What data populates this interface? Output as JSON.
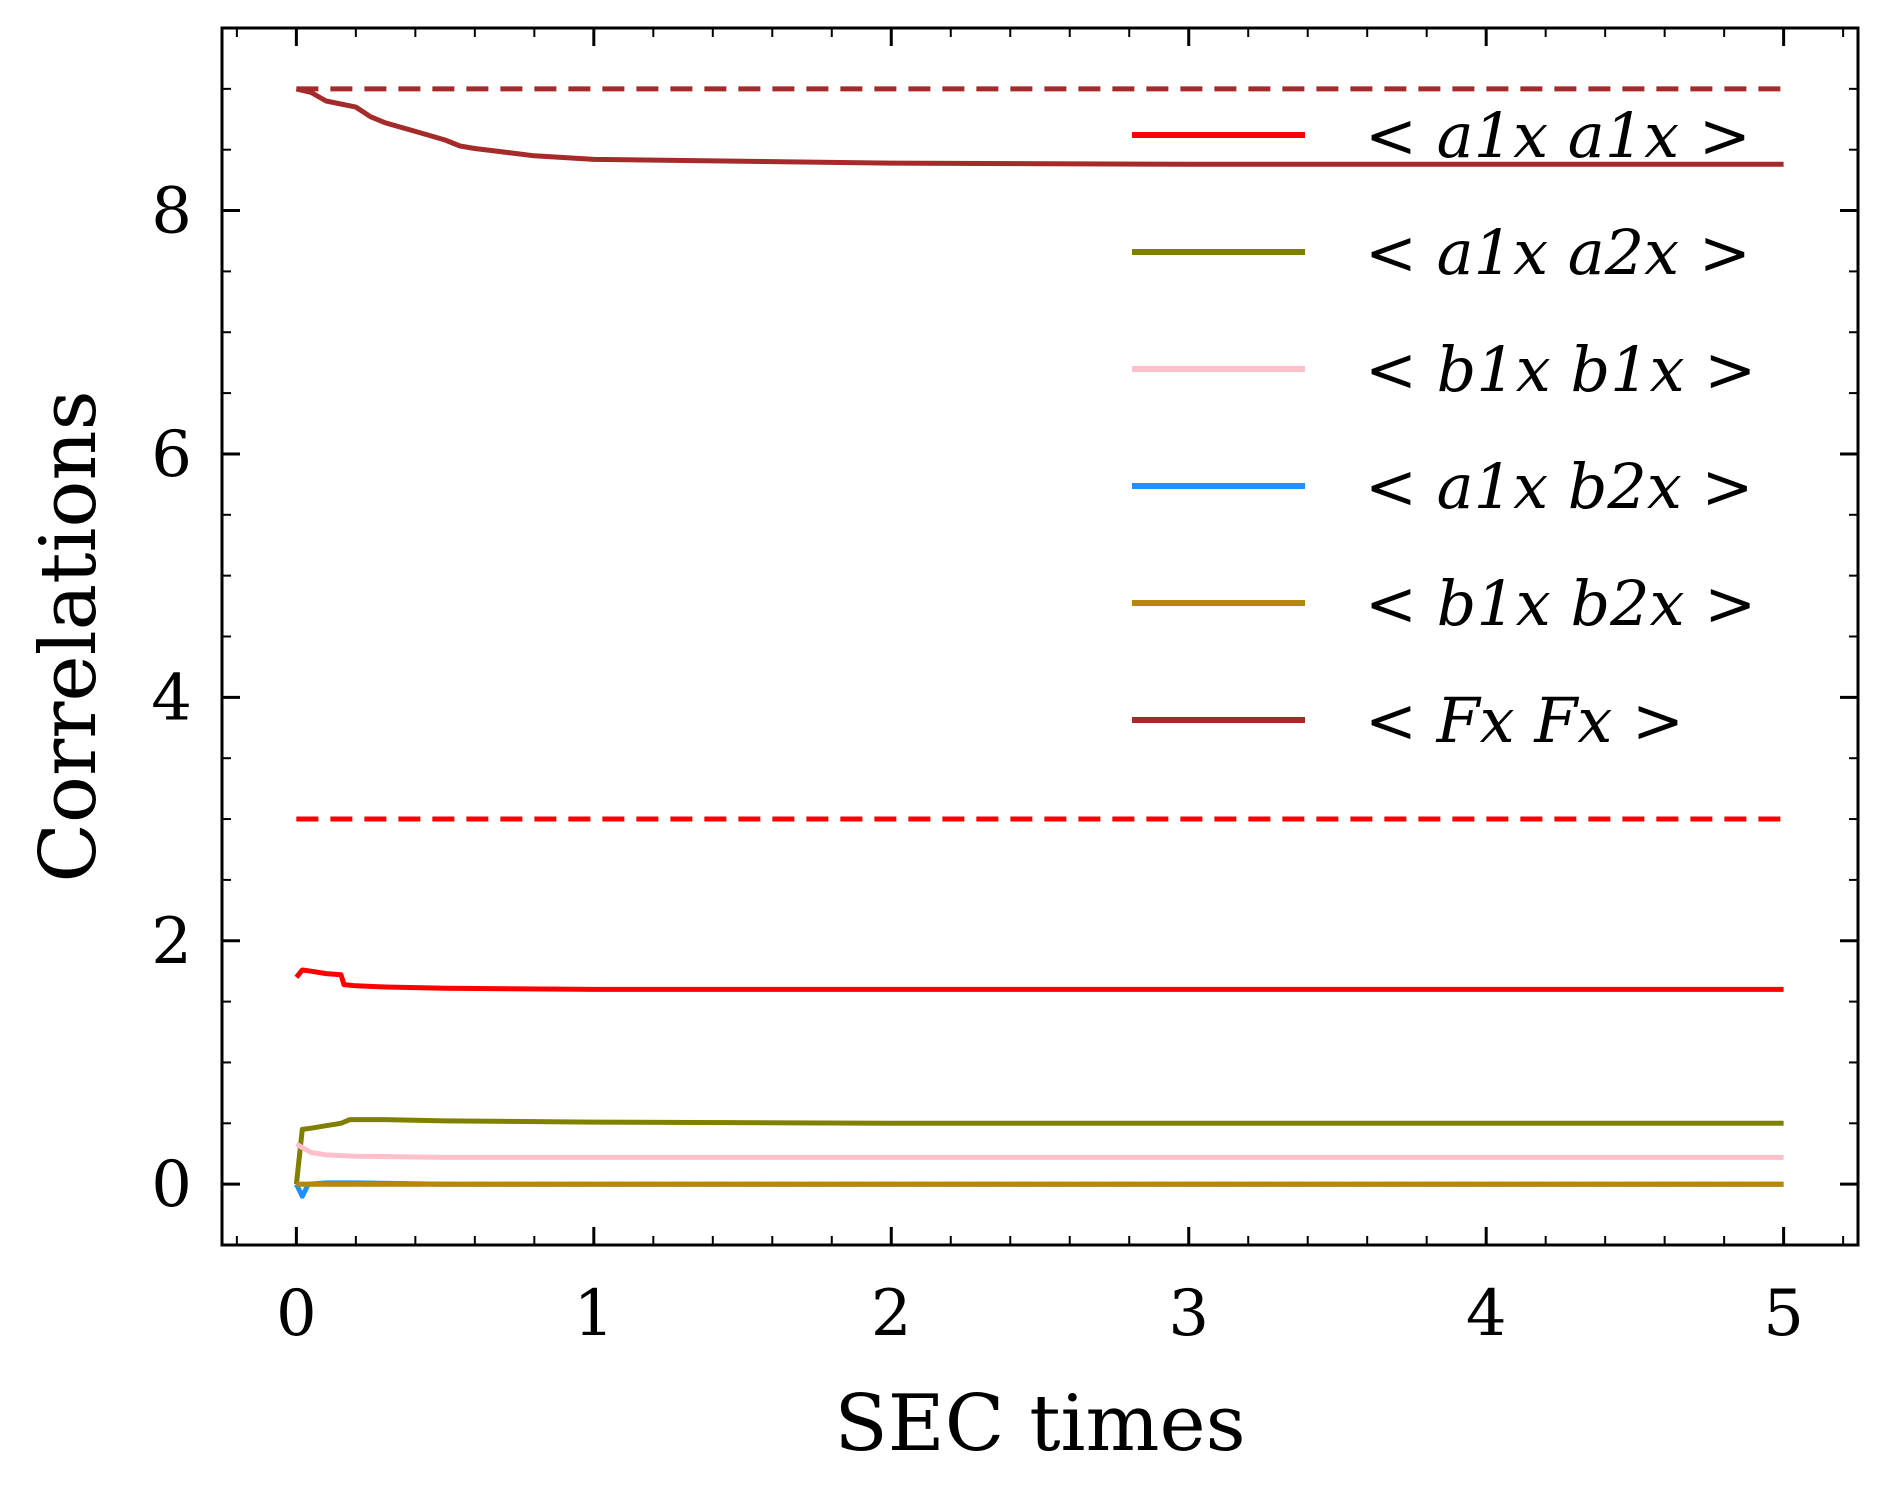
{
  "chart_data": {
    "type": "line",
    "title": "",
    "xlabel": "SEC times",
    "ylabel": "Correlations",
    "xlim": [
      -0.25,
      5.25
    ],
    "ylim": [
      -0.5,
      9.5
    ],
    "xticks": [
      "0",
      "1",
      "2",
      "3",
      "4",
      "5"
    ],
    "yticks": [
      "0",
      "2",
      "4",
      "6",
      "8"
    ],
    "grid": false,
    "legend_position": "upper-right",
    "series": [
      {
        "name": "< a1x a1x >",
        "color": "#ff0000",
        "style": "solid",
        "x": [
          0,
          0.02,
          0.05,
          0.1,
          0.15,
          0.16,
          0.2,
          0.3,
          0.5,
          1,
          2,
          3,
          4,
          5
        ],
        "y": [
          1.7,
          1.76,
          1.75,
          1.73,
          1.72,
          1.64,
          1.63,
          1.62,
          1.61,
          1.6,
          1.6,
          1.6,
          1.6,
          1.6
        ]
      },
      {
        "name": "< a1x a2x >",
        "color": "#808000",
        "style": "solid",
        "x": [
          0,
          0.02,
          0.05,
          0.1,
          0.15,
          0.18,
          0.3,
          0.5,
          1,
          2,
          3,
          4,
          5
        ],
        "y": [
          0.0,
          0.45,
          0.46,
          0.48,
          0.5,
          0.53,
          0.53,
          0.52,
          0.51,
          0.5,
          0.5,
          0.5,
          0.5
        ]
      },
      {
        "name": "< b1x b1x >",
        "color": "#ffc0cb",
        "style": "solid",
        "x": [
          0,
          0.02,
          0.05,
          0.1,
          0.2,
          0.5,
          1,
          2,
          3,
          4,
          5
        ],
        "y": [
          0.33,
          0.3,
          0.26,
          0.24,
          0.23,
          0.22,
          0.22,
          0.22,
          0.22,
          0.22,
          0.22
        ]
      },
      {
        "name": "< a1x b2x >",
        "color": "#1e90ff",
        "style": "solid",
        "x": [
          0,
          0.01,
          0.02,
          0.04,
          0.1,
          0.2,
          0.5,
          1,
          2,
          3,
          4,
          5
        ],
        "y": [
          0.0,
          -0.05,
          -0.1,
          0.0,
          0.01,
          0.01,
          0.0,
          0.0,
          0.0,
          0.0,
          0.0,
          0.0
        ]
      },
      {
        "name": "< b1x b2x >",
        "color": "#b8860b",
        "style": "solid",
        "x": [
          0,
          0.05,
          0.2,
          1,
          2,
          3,
          4,
          5
        ],
        "y": [
          0.0,
          0.0,
          0.0,
          0.0,
          0.0,
          0.0,
          0.0,
          0.0
        ]
      },
      {
        "name": "< Fx Fx >",
        "color": "#a52a2a",
        "style": "solid",
        "x": [
          0,
          0.05,
          0.1,
          0.2,
          0.25,
          0.3,
          0.4,
          0.5,
          0.55,
          0.6,
          0.8,
          1,
          2,
          3,
          4,
          5
        ],
        "y": [
          9.0,
          8.97,
          8.9,
          8.85,
          8.77,
          8.72,
          8.65,
          8.58,
          8.53,
          8.51,
          8.45,
          8.42,
          8.39,
          8.38,
          8.38,
          8.38
        ]
      }
    ],
    "reference_lines": [
      {
        "y": 9.0,
        "color": "#a52a2a",
        "style": "dashed",
        "x": [
          0,
          5
        ]
      },
      {
        "y": 3.0,
        "color": "#ff0000",
        "style": "dashed",
        "x": [
          0,
          5
        ]
      },
      {
        "y": 0.0,
        "color": "#b8860b",
        "style": "dashed",
        "x": [
          0,
          5
        ]
      },
      {
        "y": 0.0,
        "color": "#ffc0cb",
        "style": "dashed",
        "x": [
          0,
          5
        ]
      }
    ]
  }
}
